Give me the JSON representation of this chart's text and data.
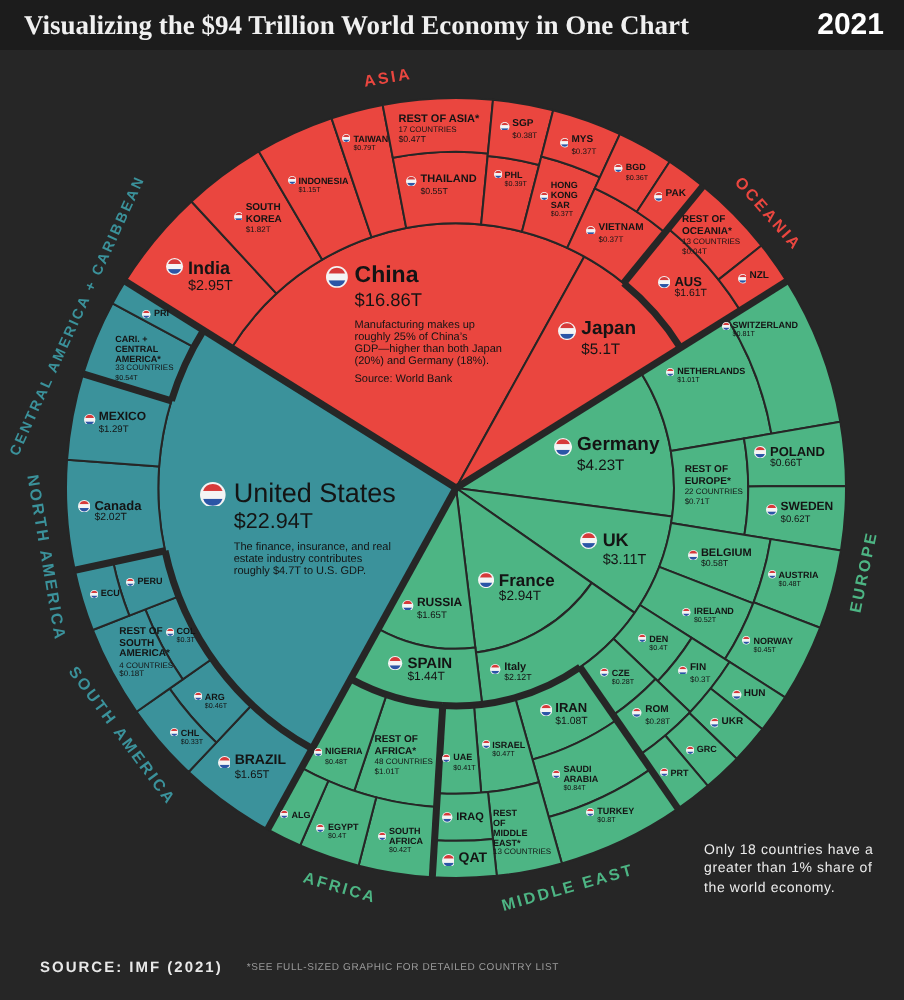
{
  "chart_data": {
    "type": "other",
    "title": "Visualizing the $94 Trillion World Economy in One Chart",
    "subtitle": "2021",
    "annotations": [
      "The finance, insurance, and real estate industry contributes roughly $4.7T to U.S. GDP.",
      "Manufacturing makes up roughly 25% of China’s GDP—higher than both Japan (20%) and Germany (18%).\nSource: World Bank",
      "SOURCE: IMF (2021)",
      "*SEE FULL-SIZED GRAPHIC FOR DETAILED COUNTRY LIST",
      "Only 18 countries have a greater than 1% share of the world economy."
    ],
    "categories": [
      "China",
      "Japan",
      "India",
      "SOUTH KOREA",
      "INDONESIA",
      "TAIWAN",
      "THAILAND",
      "REST OF ASIA*\n17 COUNTRIES",
      "PHL",
      "SGP",
      "HONG KONG SAR",
      "MYS",
      "VIETNAM",
      "BGD",
      "PAK",
      "AUS",
      "REST OF OCEANIA*\n13 COUNTRIES",
      "NZL",
      "Germany",
      "UK",
      "France",
      "Italy",
      "RUSSIA",
      "SPAIN",
      "NETHERLANDS",
      "SWITZERLAND",
      "REST OF EUROPE*\n22 COUNTRIES",
      "POLAND",
      "SWEDEN",
      "BELGIUM",
      "IRELAND",
      "AUSTRIA",
      "NORWAY",
      "DEN",
      "FIN",
      "CZE",
      "ROM",
      "HUN",
      "UKR",
      "GRC",
      "PRT",
      "IRAN",
      "SAUDI ARABIA",
      "TURKEY",
      "ISRAEL",
      "UAE",
      "REST OF MIDDLE EAST*\n13 COUNTRIES",
      "IRAQ",
      "QAT",
      "REST OF AFRICA*\n48 COUNTRIES",
      "NIGERIA",
      "SOUTH AFRICA",
      "EGYPT",
      "ALG",
      "BRAZIL",
      "ARG",
      "CHL",
      "COL",
      "REST OF SOUTH AMERICA*\n4 COUNTRIES",
      "PERU",
      "ECU",
      "United States",
      "Canada",
      "MEXICO",
      "CARI. + CENTRAL AMERICA*\n33 COUNTRIES",
      "PRI"
    ],
    "series": [
      {
        "name": "ASIA",
        "color": "#ea463f",
        "values": [
          16.86,
          5.1,
          2.95,
          1.82,
          1.15,
          0.79,
          0.55,
          0.47,
          0.39,
          0.38,
          0.37,
          0.37,
          0.37,
          0.36,
          null,
          null,
          null,
          null,
          null,
          null,
          null,
          null,
          null,
          null,
          null,
          null,
          null,
          null,
          null,
          null,
          null,
          null,
          null,
          null,
          null,
          null,
          null,
          null,
          null,
          null,
          null,
          null,
          null,
          null,
          null,
          null,
          null,
          null,
          null,
          null,
          null,
          null,
          null,
          null,
          null,
          null,
          null,
          null,
          null,
          null,
          null,
          null,
          null,
          null,
          null,
          null
        ],
        "value_labels": [
          "$16.86T",
          "$5.1T",
          "$2.95T",
          "$1.82T",
          "$1.15T",
          "$0.79T",
          "$0.55T",
          "$0.47T",
          "$0.39T",
          "$0.38T",
          "$0.37T",
          "$0.37T",
          "$0.37T",
          "$0.36T",
          null,
          null,
          null,
          null,
          null,
          null,
          null,
          null,
          null,
          null,
          null,
          null,
          null,
          null,
          null,
          null,
          null,
          null,
          null,
          null,
          null,
          null,
          null,
          null,
          null,
          null,
          null,
          null,
          null,
          null,
          null,
          null,
          null,
          null,
          null,
          null,
          null,
          null,
          null,
          null,
          null,
          null,
          null,
          null,
          null,
          null,
          null,
          null,
          null,
          null,
          null,
          null
        ]
      },
      {
        "name": "OCEANIA",
        "color": "#ea463f",
        "values": [
          null,
          null,
          null,
          null,
          null,
          null,
          null,
          null,
          null,
          null,
          null,
          null,
          null,
          null,
          null,
          1.61,
          0.04,
          null,
          null,
          null,
          null,
          null,
          null,
          null,
          null,
          null,
          null,
          null,
          null,
          null,
          null,
          null,
          null,
          null,
          null,
          null,
          null,
          null,
          null,
          null,
          null,
          null,
          null,
          null,
          null,
          null,
          null,
          null,
          null,
          null,
          null,
          null,
          null,
          null,
          null,
          null,
          null,
          null,
          null,
          null,
          null,
          null,
          null,
          null,
          null,
          null
        ],
        "value_labels": [
          null,
          null,
          null,
          null,
          null,
          null,
          null,
          null,
          null,
          null,
          null,
          null,
          null,
          null,
          null,
          "$1.61T",
          "$0.04T",
          null,
          null,
          null,
          null,
          null,
          null,
          null,
          null,
          null,
          null,
          null,
          null,
          null,
          null,
          null,
          null,
          null,
          null,
          null,
          null,
          null,
          null,
          null,
          null,
          null,
          null,
          null,
          null,
          null,
          null,
          null,
          null,
          null,
          null,
          null,
          null,
          null,
          null,
          null,
          null,
          null,
          null,
          null,
          null,
          null,
          null,
          null,
          null,
          null
        ]
      },
      {
        "name": "EUROPE",
        "color": "#4db584",
        "values": [
          null,
          null,
          null,
          null,
          null,
          null,
          null,
          null,
          null,
          null,
          null,
          null,
          null,
          null,
          null,
          null,
          null,
          null,
          4.23,
          3.11,
          2.94,
          2.12,
          1.65,
          1.44,
          1.01,
          0.81,
          0.71,
          0.66,
          0.62,
          0.58,
          0.52,
          0.48,
          0.45,
          0.4,
          0.3,
          0.28,
          0.28,
          null,
          null,
          null,
          null,
          null,
          null,
          null,
          null,
          null,
          null,
          null,
          null,
          null,
          null,
          null,
          null,
          null,
          null,
          null,
          null,
          null,
          null,
          null,
          null,
          null,
          null,
          null,
          null,
          null
        ],
        "value_labels": [
          null,
          null,
          null,
          null,
          null,
          null,
          null,
          null,
          null,
          null,
          null,
          null,
          null,
          null,
          null,
          null,
          null,
          null,
          "$4.23T",
          "$3.11T",
          "$2.94T",
          "$2.12T",
          "$1.65T",
          "$1.44T",
          "$1.01T",
          "$0.81T",
          "$0.71T",
          "$0.66T",
          "$0.62T",
          "$0.58T",
          "$0.52T",
          "$0.48T",
          "$0.45T",
          "$0.4T",
          "$0.3T",
          "$0.28T",
          "$0.28T",
          null,
          null,
          null,
          null,
          null,
          null,
          null,
          null,
          null,
          null,
          null,
          null,
          null,
          null,
          null,
          null,
          null,
          null,
          null,
          null,
          null,
          null,
          null,
          null,
          null,
          null,
          null,
          null,
          null
        ]
      },
      {
        "name": "MIDDLE EAST",
        "color": "#4db584",
        "values": [
          null,
          null,
          null,
          null,
          null,
          null,
          null,
          null,
          null,
          null,
          null,
          null,
          null,
          null,
          null,
          null,
          null,
          null,
          null,
          null,
          null,
          null,
          null,
          null,
          null,
          null,
          null,
          null,
          null,
          null,
          null,
          null,
          null,
          null,
          null,
          null,
          null,
          null,
          null,
          null,
          null,
          1.08,
          0.84,
          0.8,
          0.47,
          0.41,
          null,
          null,
          null,
          null,
          null,
          null,
          null,
          null,
          null,
          null,
          null,
          null,
          null,
          null,
          null,
          null,
          null,
          null,
          null,
          null
        ],
        "value_labels": [
          null,
          null,
          null,
          null,
          null,
          null,
          null,
          null,
          null,
          null,
          null,
          null,
          null,
          null,
          null,
          null,
          null,
          null,
          null,
          null,
          null,
          null,
          null,
          null,
          null,
          null,
          null,
          null,
          null,
          null,
          null,
          null,
          null,
          null,
          null,
          null,
          null,
          null,
          null,
          null,
          null,
          "$1.08T",
          "$0.84T",
          "$0.8T",
          "$0.47T",
          "$0.41T",
          null,
          null,
          null,
          null,
          null,
          null,
          null,
          null,
          null,
          null,
          null,
          null,
          null,
          null,
          null,
          null,
          null,
          null,
          null,
          null
        ]
      },
      {
        "name": "AFRICA",
        "color": "#4db584",
        "values": [
          null,
          null,
          null,
          null,
          null,
          null,
          null,
          null,
          null,
          null,
          null,
          null,
          null,
          null,
          null,
          null,
          null,
          null,
          null,
          null,
          null,
          null,
          null,
          null,
          null,
          null,
          null,
          null,
          null,
          null,
          null,
          null,
          null,
          null,
          null,
          null,
          null,
          null,
          null,
          null,
          null,
          null,
          null,
          null,
          null,
          null,
          null,
          null,
          null,
          1.01,
          0.48,
          0.42,
          0.4,
          null,
          null,
          null,
          null,
          null,
          null,
          null,
          null,
          null,
          null,
          null,
          null,
          null
        ],
        "value_labels": [
          null,
          null,
          null,
          null,
          null,
          null,
          null,
          null,
          null,
          null,
          null,
          null,
          null,
          null,
          null,
          null,
          null,
          null,
          null,
          null,
          null,
          null,
          null,
          null,
          null,
          null,
          null,
          null,
          null,
          null,
          null,
          null,
          null,
          null,
          null,
          null,
          null,
          null,
          null,
          null,
          null,
          null,
          null,
          null,
          null,
          null,
          null,
          null,
          null,
          "$1.01T",
          "$0.48T",
          "$0.42T",
          "$0.4T",
          null,
          null,
          null,
          null,
          null,
          null,
          null,
          null,
          null,
          null,
          null,
          null,
          null
        ]
      },
      {
        "name": "SOUTH AMERICA",
        "color": "#3b929b",
        "values": [
          null,
          null,
          null,
          null,
          null,
          null,
          null,
          null,
          null,
          null,
          null,
          null,
          null,
          null,
          null,
          null,
          null,
          null,
          null,
          null,
          null,
          null,
          null,
          null,
          null,
          null,
          null,
          null,
          null,
          null,
          null,
          null,
          null,
          null,
          null,
          null,
          null,
          null,
          null,
          null,
          null,
          null,
          null,
          null,
          null,
          null,
          null,
          null,
          null,
          null,
          null,
          null,
          null,
          null,
          1.65,
          0.46,
          0.33,
          0.3,
          0.18,
          null,
          null,
          null,
          null,
          null,
          null,
          null
        ],
        "value_labels": [
          null,
          null,
          null,
          null,
          null,
          null,
          null,
          null,
          null,
          null,
          null,
          null,
          null,
          null,
          null,
          null,
          null,
          null,
          null,
          null,
          null,
          null,
          null,
          null,
          null,
          null,
          null,
          null,
          null,
          null,
          null,
          null,
          null,
          null,
          null,
          null,
          null,
          null,
          null,
          null,
          null,
          null,
          null,
          null,
          null,
          null,
          null,
          null,
          null,
          null,
          null,
          null,
          null,
          null,
          "$1.65T",
          "$0.46T",
          "$0.33T",
          "$0.3T",
          "$0.18T",
          null,
          null,
          null,
          null,
          null,
          null,
          null
        ]
      },
      {
        "name": "NORTH AMERICA",
        "color": "#3b929b",
        "values": [
          null,
          null,
          null,
          null,
          null,
          null,
          null,
          null,
          null,
          null,
          null,
          null,
          null,
          null,
          null,
          null,
          null,
          null,
          null,
          null,
          null,
          null,
          null,
          null,
          null,
          null,
          null,
          null,
          null,
          null,
          null,
          null,
          null,
          null,
          null,
          null,
          null,
          null,
          null,
          null,
          null,
          null,
          null,
          null,
          null,
          null,
          null,
          null,
          null,
          null,
          null,
          null,
          null,
          null,
          null,
          null,
          null,
          null,
          null,
          null,
          null,
          22.94,
          2.02,
          1.29,
          null,
          null
        ],
        "value_labels": [
          null,
          null,
          null,
          null,
          null,
          null,
          null,
          null,
          null,
          null,
          null,
          null,
          null,
          null,
          null,
          null,
          null,
          null,
          null,
          null,
          null,
          null,
          null,
          null,
          null,
          null,
          null,
          null,
          null,
          null,
          null,
          null,
          null,
          null,
          null,
          null,
          null,
          null,
          null,
          null,
          null,
          null,
          null,
          null,
          null,
          null,
          null,
          null,
          null,
          null,
          null,
          null,
          null,
          null,
          null,
          null,
          null,
          null,
          null,
          null,
          null,
          "$22.94T",
          "$2.02T",
          "$1.29T",
          null,
          null
        ]
      },
      {
        "name": "CENTRAL AMERICA + CARIBBEAN",
        "color": "#3b929b",
        "values": [
          null,
          null,
          null,
          null,
          null,
          null,
          null,
          null,
          null,
          null,
          null,
          null,
          null,
          null,
          null,
          null,
          null,
          null,
          null,
          null,
          null,
          null,
          null,
          null,
          null,
          null,
          null,
          null,
          null,
          null,
          null,
          null,
          null,
          null,
          null,
          null,
          null,
          null,
          null,
          null,
          null,
          null,
          null,
          null,
          null,
          null,
          null,
          null,
          null,
          null,
          null,
          null,
          null,
          null,
          null,
          null,
          null,
          null,
          null,
          null,
          null,
          null,
          null,
          null,
          0.54,
          null
        ],
        "value_labels": [
          null,
          null,
          null,
          null,
          null,
          null,
          null,
          null,
          null,
          null,
          null,
          null,
          null,
          null,
          null,
          null,
          null,
          null,
          null,
          null,
          null,
          null,
          null,
          null,
          null,
          null,
          null,
          null,
          null,
          null,
          null,
          null,
          null,
          null,
          null,
          null,
          null,
          null,
          null,
          null,
          null,
          null,
          null,
          null,
          null,
          null,
          null,
          null,
          null,
          null,
          null,
          null,
          null,
          null,
          null,
          null,
          null,
          null,
          null,
          null,
          null,
          null,
          null,
          null,
          "$0.54T",
          null
        ]
      }
    ]
  }
}
